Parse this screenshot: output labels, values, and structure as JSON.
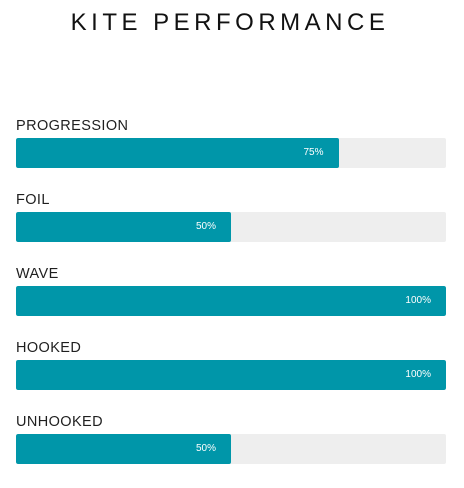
{
  "page": {
    "title": "KITE PERFORMANCE"
  },
  "colors": {
    "bar_fill": "#0096a9",
    "bar_track": "#eeeeee"
  },
  "bars": [
    {
      "label": "PROGRESSION",
      "percent": 75,
      "value_label": "75%"
    },
    {
      "label": "FOIL",
      "percent": 50,
      "value_label": "50%"
    },
    {
      "label": "WAVE",
      "percent": 100,
      "value_label": "100%"
    },
    {
      "label": "HOOKED",
      "percent": 100,
      "value_label": "100%"
    },
    {
      "label": "UNHOOKED",
      "percent": 50,
      "value_label": "50%"
    }
  ]
}
